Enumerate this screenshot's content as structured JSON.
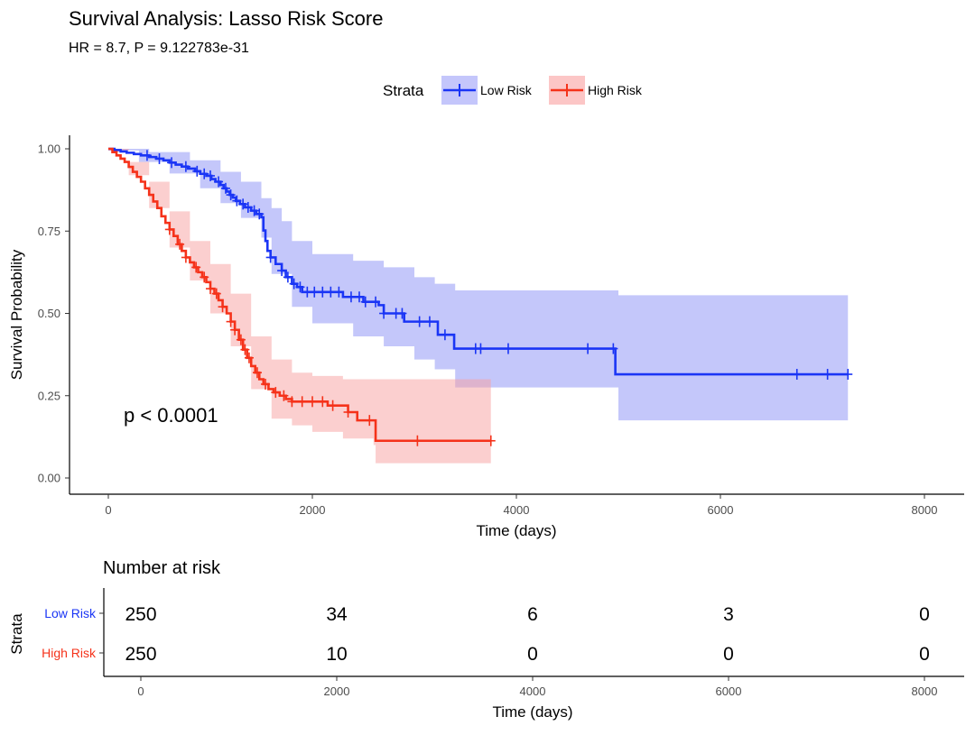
{
  "chart_data": {
    "type": "line",
    "subtype": "kaplan-meier",
    "title": "Survival Analysis: Lasso Risk Score",
    "subtitle": "HR = 8.7, P = 9.122783e-31",
    "xlabel": "Time (days)",
    "ylabel": "Survival Probability",
    "xlim": [
      0,
      8000
    ],
    "ylim": [
      0,
      1
    ],
    "x_ticks": [
      0,
      2000,
      4000,
      6000,
      8000
    ],
    "x_tick_labels": [
      "0",
      "2000",
      "4000",
      "6000",
      "8000"
    ],
    "y_ticks": [
      0,
      0.25,
      0.5,
      0.75,
      1.0
    ],
    "y_tick_labels": [
      "0.00",
      "0.25",
      "0.50",
      "0.75",
      "1.00"
    ],
    "grid": false,
    "legend": {
      "title": "Strata",
      "placement": "top",
      "entries": [
        "Low Risk",
        "High Risk"
      ]
    },
    "annotation": "p < 0.0001",
    "series": [
      {
        "name": "Low Risk",
        "color": "#1a35f5",
        "ci_color": "#8a8ff5",
        "steps": [
          [
            0,
            1.0
          ],
          [
            60,
            0.996
          ],
          [
            120,
            0.992
          ],
          [
            180,
            0.988
          ],
          [
            250,
            0.984
          ],
          [
            320,
            0.98
          ],
          [
            400,
            0.975
          ],
          [
            470,
            0.97
          ],
          [
            540,
            0.965
          ],
          [
            600,
            0.958
          ],
          [
            660,
            0.952
          ],
          [
            720,
            0.946
          ],
          [
            780,
            0.94
          ],
          [
            850,
            0.932
          ],
          [
            900,
            0.924
          ],
          [
            960,
            0.918
          ],
          [
            1010,
            0.908
          ],
          [
            1050,
            0.9
          ],
          [
            1100,
            0.89
          ],
          [
            1130,
            0.88
          ],
          [
            1160,
            0.87
          ],
          [
            1190,
            0.86
          ],
          [
            1220,
            0.852
          ],
          [
            1250,
            0.842
          ],
          [
            1290,
            0.832
          ],
          [
            1340,
            0.822
          ],
          [
            1400,
            0.812
          ],
          [
            1450,
            0.802
          ],
          [
            1500,
            0.792
          ],
          [
            1550,
            0.78
          ],
          [
            1600,
            0.77
          ],
          [
            1660,
            0.76
          ],
          [
            1720,
            0.752
          ],
          [
            1800,
            0.752
          ],
          [
            1900,
            0.752
          ],
          [
            1520,
            0.752
          ],
          [
            1540,
            0.72
          ],
          [
            1560,
            0.69
          ],
          [
            1590,
            0.67
          ],
          [
            1640,
            0.65
          ],
          [
            1700,
            0.63
          ],
          [
            1740,
            0.61
          ],
          [
            1800,
            0.59
          ],
          [
            1850,
            0.58
          ],
          [
            1900,
            0.565
          ],
          [
            2100,
            0.565
          ],
          [
            2300,
            0.55
          ],
          [
            2500,
            0.535
          ],
          [
            2650,
            0.525
          ],
          [
            2700,
            0.5
          ],
          [
            2800,
            0.5
          ],
          [
            2900,
            0.475
          ],
          [
            3200,
            0.475
          ],
          [
            3230,
            0.435
          ],
          [
            3370,
            0.435
          ],
          [
            3390,
            0.393
          ],
          [
            4950,
            0.393
          ],
          [
            4970,
            0.315
          ],
          [
            7250,
            0.315
          ]
        ],
        "ci_upper": [
          [
            0,
            1.0
          ],
          [
            400,
            0.99
          ],
          [
            800,
            0.965
          ],
          [
            1100,
            0.93
          ],
          [
            1300,
            0.9
          ],
          [
            1500,
            0.85
          ],
          [
            1600,
            0.82
          ],
          [
            1700,
            0.78
          ],
          [
            1800,
            0.72
          ],
          [
            2000,
            0.68
          ],
          [
            2400,
            0.66
          ],
          [
            2700,
            0.64
          ],
          [
            3000,
            0.61
          ],
          [
            3200,
            0.59
          ],
          [
            3400,
            0.57
          ],
          [
            4900,
            0.57
          ],
          [
            5000,
            0.555
          ],
          [
            7250,
            0.555
          ]
        ],
        "ci_lower": [
          [
            0,
            0.995
          ],
          [
            300,
            0.96
          ],
          [
            600,
            0.925
          ],
          [
            900,
            0.88
          ],
          [
            1100,
            0.835
          ],
          [
            1300,
            0.79
          ],
          [
            1500,
            0.73
          ],
          [
            1600,
            0.62
          ],
          [
            1800,
            0.52
          ],
          [
            2000,
            0.47
          ],
          [
            2400,
            0.43
          ],
          [
            2700,
            0.4
          ],
          [
            3000,
            0.36
          ],
          [
            3200,
            0.33
          ],
          [
            3400,
            0.275
          ],
          [
            4950,
            0.275
          ],
          [
            5000,
            0.175
          ],
          [
            7250,
            0.175
          ]
        ],
        "censor_times": [
          380,
          500,
          620,
          760,
          870,
          940,
          1000,
          1080,
          1150,
          1200,
          1260,
          1320,
          1370,
          1430,
          1480,
          1590,
          1700,
          1760,
          1820,
          1880,
          1950,
          2020,
          2100,
          2180,
          2260,
          2380,
          2460,
          2520,
          2620,
          2700,
          2820,
          2880,
          3050,
          3150,
          3300,
          3600,
          3650,
          3920,
          4700,
          4950,
          6750,
          7050,
          7250
        ]
      },
      {
        "name": "High Risk",
        "color": "#f5321a",
        "ci_color": "#f7a0a0",
        "steps": [
          [
            0,
            1.0
          ],
          [
            40,
            0.99
          ],
          [
            80,
            0.98
          ],
          [
            120,
            0.97
          ],
          [
            160,
            0.96
          ],
          [
            200,
            0.945
          ],
          [
            240,
            0.93
          ],
          [
            280,
            0.915
          ],
          [
            320,
            0.9
          ],
          [
            360,
            0.88
          ],
          [
            400,
            0.86
          ],
          [
            440,
            0.84
          ],
          [
            480,
            0.82
          ],
          [
            520,
            0.795
          ],
          [
            560,
            0.775
          ],
          [
            600,
            0.755
          ],
          [
            640,
            0.735
          ],
          [
            680,
            0.71
          ],
          [
            720,
            0.69
          ],
          [
            760,
            0.67
          ],
          [
            800,
            0.655
          ],
          [
            840,
            0.64
          ],
          [
            880,
            0.625
          ],
          [
            920,
            0.61
          ],
          [
            960,
            0.595
          ],
          [
            1000,
            0.575
          ],
          [
            1040,
            0.56
          ],
          [
            1080,
            0.54
          ],
          [
            1120,
            0.52
          ],
          [
            1160,
            0.5
          ],
          [
            1200,
            0.475
          ],
          [
            1240,
            0.45
          ],
          [
            1280,
            0.42
          ],
          [
            1320,
            0.39
          ],
          [
            1360,
            0.365
          ],
          [
            1400,
            0.34
          ],
          [
            1440,
            0.32
          ],
          [
            1480,
            0.3
          ],
          [
            1520,
            0.285
          ],
          [
            1570,
            0.27
          ],
          [
            1620,
            0.26
          ],
          [
            1680,
            0.25
          ],
          [
            1740,
            0.24
          ],
          [
            1800,
            0.232
          ],
          [
            2100,
            0.232
          ],
          [
            2150,
            0.22
          ],
          [
            2350,
            0.2
          ],
          [
            2400,
            0.2
          ],
          [
            2440,
            0.175
          ],
          [
            2600,
            0.175
          ],
          [
            2620,
            0.113
          ],
          [
            3750,
            0.113
          ]
        ],
        "ci_upper": [
          [
            0,
            1.0
          ],
          [
            200,
            0.96
          ],
          [
            400,
            0.9
          ],
          [
            600,
            0.81
          ],
          [
            800,
            0.72
          ],
          [
            1000,
            0.65
          ],
          [
            1200,
            0.56
          ],
          [
            1400,
            0.43
          ],
          [
            1600,
            0.36
          ],
          [
            1800,
            0.32
          ],
          [
            2000,
            0.31
          ],
          [
            2300,
            0.3
          ],
          [
            2600,
            0.3
          ],
          [
            3750,
            0.3
          ]
        ],
        "ci_lower": [
          [
            0,
            0.995
          ],
          [
            200,
            0.92
          ],
          [
            400,
            0.82
          ],
          [
            600,
            0.7
          ],
          [
            800,
            0.6
          ],
          [
            1000,
            0.5
          ],
          [
            1200,
            0.4
          ],
          [
            1400,
            0.27
          ],
          [
            1600,
            0.18
          ],
          [
            1800,
            0.16
          ],
          [
            2000,
            0.14
          ],
          [
            2300,
            0.12
          ],
          [
            2600,
            0.1
          ],
          [
            2620,
            0.045
          ],
          [
            3750,
            0.045
          ]
        ],
        "censor_times": [
          600,
          700,
          760,
          860,
          940,
          1000,
          1060,
          1120,
          1200,
          1240,
          1300,
          1340,
          1380,
          1460,
          1540,
          1640,
          1720,
          1800,
          1900,
          2000,
          2100,
          2200,
          2350,
          2560,
          3030,
          3750
        ]
      }
    ],
    "risk_table": {
      "title": "Number at risk",
      "ylabel": "Strata",
      "xlabel": "Time (days)",
      "times": [
        0,
        2000,
        4000,
        6000,
        8000
      ],
      "rows": [
        {
          "name": "Low Risk",
          "color": "#1a35f5",
          "values": [
            250,
            34,
            6,
            3,
            0
          ]
        },
        {
          "name": "High Risk",
          "color": "#f5321a",
          "values": [
            250,
            10,
            0,
            0,
            0
          ]
        }
      ]
    }
  }
}
